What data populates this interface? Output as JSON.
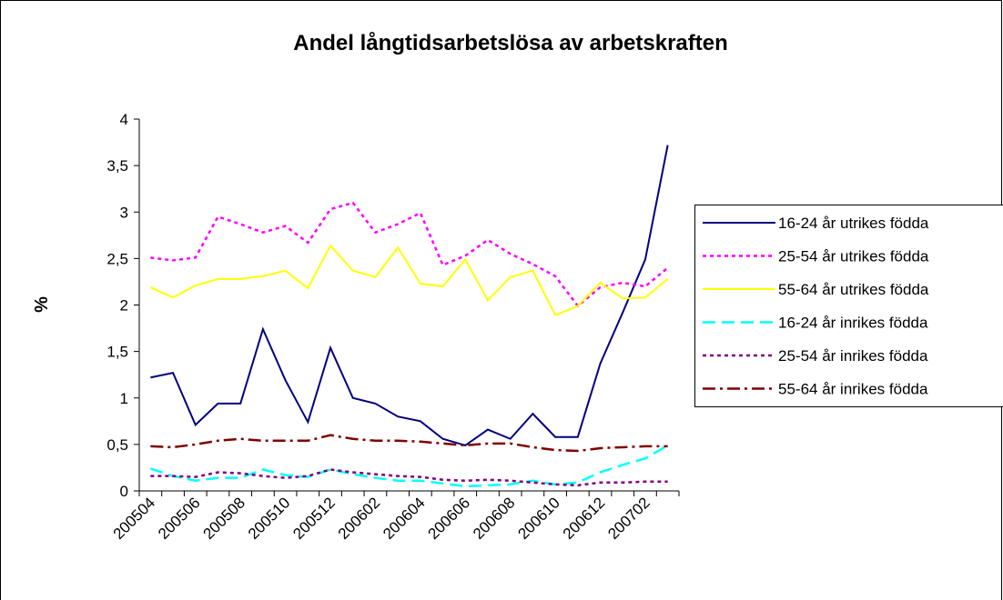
{
  "chart_data": {
    "type": "line",
    "title": "Andel långtidsarbetslösa av arbetskraften",
    "y_label": "%",
    "categories": [
      "200504",
      null,
      "200506",
      null,
      "200508",
      null,
      "200510",
      null,
      "200512",
      null,
      "200602",
      null,
      "200604",
      null,
      "200606",
      null,
      "200608",
      null,
      "200610",
      null,
      "200612",
      null,
      "200702",
      null
    ],
    "ylim": [
      0,
      4
    ],
    "yticks": [
      0,
      {
        "value": 0.5,
        "label": "0,5"
      },
      1,
      {
        "value": 1.5,
        "label": "1,5"
      },
      2,
      {
        "value": 2.5,
        "label": "2,5"
      },
      3,
      {
        "value": 3.5,
        "label": "3,5"
      },
      4
    ],
    "series": [
      {
        "name": "16-24 år utrikes födda",
        "color": "#000080",
        "dash": "solid",
        "values": [
          1.22,
          1.27,
          0.71,
          0.94,
          0.94,
          1.74,
          1.19,
          0.74,
          1.54,
          1.0,
          0.94,
          0.8,
          0.75,
          0.56,
          0.49,
          0.66,
          0.56,
          0.83,
          0.58,
          0.58,
          1.37,
          1.92,
          2.49,
          3.72
        ]
      },
      {
        "name": "25-54 år utrikes födda",
        "color": "#ff00ff",
        "dash": "dotted",
        "values": [
          2.51,
          2.48,
          2.51,
          2.95,
          2.87,
          2.78,
          2.85,
          2.67,
          3.03,
          3.1,
          2.78,
          2.87,
          2.99,
          2.43,
          2.53,
          2.7,
          2.55,
          2.44,
          2.31,
          1.99,
          2.19,
          2.24,
          2.2,
          2.4
        ]
      },
      {
        "name": "55-64 år utrikes födda",
        "color": "#ffff00",
        "dash": "solid",
        "values": [
          2.19,
          2.08,
          2.21,
          2.28,
          2.28,
          2.31,
          2.37,
          2.18,
          2.64,
          2.37,
          2.3,
          2.62,
          2.23,
          2.2,
          2.49,
          2.05,
          2.3,
          2.37,
          1.89,
          1.99,
          2.24,
          2.07,
          2.08,
          2.28
        ]
      },
      {
        "name": "16-24 år inrikes födda",
        "color": "#00ffff",
        "dash": "dashed",
        "values": [
          0.24,
          0.16,
          0.11,
          0.14,
          0.14,
          0.23,
          0.17,
          0.15,
          0.23,
          0.18,
          0.14,
          0.11,
          0.11,
          0.08,
          0.05,
          0.06,
          0.07,
          0.11,
          0.07,
          0.09,
          0.2,
          0.28,
          0.35,
          0.49
        ]
      },
      {
        "name": "25-54 år inrikes födda",
        "color": "#800080",
        "dash": "dotted",
        "values": [
          0.16,
          0.16,
          0.15,
          0.2,
          0.19,
          0.16,
          0.14,
          0.16,
          0.23,
          0.2,
          0.18,
          0.16,
          0.15,
          0.12,
          0.11,
          0.12,
          0.11,
          0.09,
          0.07,
          0.06,
          0.09,
          0.09,
          0.1,
          0.1
        ]
      },
      {
        "name": "55-64 år inrikes födda",
        "color": "#800000",
        "dash": "dashdot",
        "values": [
          0.48,
          0.47,
          0.5,
          0.54,
          0.56,
          0.54,
          0.54,
          0.54,
          0.6,
          0.56,
          0.54,
          0.54,
          0.53,
          0.51,
          0.49,
          0.51,
          0.51,
          0.47,
          0.44,
          0.43,
          0.46,
          0.47,
          0.48,
          0.48
        ]
      }
    ],
    "legend": "right"
  }
}
